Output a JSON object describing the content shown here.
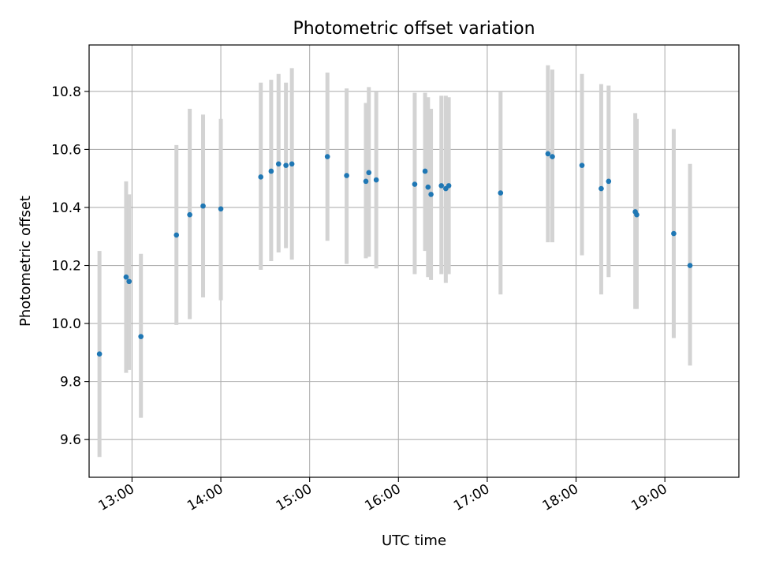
{
  "chart_data": {
    "type": "scatter",
    "title": "Photometric offset variation",
    "xlabel": "UTC time",
    "ylabel": "Photometric offset",
    "grid": true,
    "x_ticks": [
      "13:00",
      "14:00",
      "15:00",
      "16:00",
      "17:00",
      "18:00",
      "19:00"
    ],
    "y_ticks": [
      "9.6",
      "9.8",
      "10.0",
      "10.2",
      "10.4",
      "10.6",
      "10.8"
    ],
    "xlim": [
      "12:31",
      "19:50"
    ],
    "ylim": [
      9.47,
      10.96
    ],
    "point_color": "#1f77b4",
    "errorbar_color": "#d3d3d3",
    "series": [
      {
        "points": [
          {
            "x": "12:38",
            "y": 9.895,
            "low": 9.54,
            "high": 10.25
          },
          {
            "x": "12:56",
            "y": 10.16,
            "low": 9.83,
            "high": 10.49
          },
          {
            "x": "12:58",
            "y": 10.145,
            "low": 9.84,
            "high": 10.445
          },
          {
            "x": "13:06",
            "y": 9.955,
            "low": 9.675,
            "high": 10.24
          },
          {
            "x": "13:30",
            "y": 10.305,
            "low": 9.995,
            "high": 10.615
          },
          {
            "x": "13:39",
            "y": 10.375,
            "low": 10.015,
            "high": 10.74
          },
          {
            "x": "13:48",
            "y": 10.405,
            "low": 10.09,
            "high": 10.72
          },
          {
            "x": "14:00",
            "y": 10.395,
            "low": 10.08,
            "high": 10.705
          },
          {
            "x": "14:27",
            "y": 10.505,
            "low": 10.185,
            "high": 10.83
          },
          {
            "x": "14:34",
            "y": 10.525,
            "low": 10.215,
            "high": 10.84
          },
          {
            "x": "14:39",
            "y": 10.55,
            "low": 10.245,
            "high": 10.86
          },
          {
            "x": "14:44",
            "y": 10.545,
            "low": 10.26,
            "high": 10.83
          },
          {
            "x": "14:48",
            "y": 10.55,
            "low": 10.22,
            "high": 10.88
          },
          {
            "x": "15:12",
            "y": 10.575,
            "low": 10.285,
            "high": 10.865
          },
          {
            "x": "15:25",
            "y": 10.51,
            "low": 10.205,
            "high": 10.81
          },
          {
            "x": "15:38",
            "y": 10.49,
            "low": 10.225,
            "high": 10.76
          },
          {
            "x": "15:40",
            "y": 10.52,
            "low": 10.23,
            "high": 10.815
          },
          {
            "x": "15:45",
            "y": 10.495,
            "low": 10.19,
            "high": 10.8
          },
          {
            "x": "16:11",
            "y": 10.48,
            "low": 10.17,
            "high": 10.795
          },
          {
            "x": "16:18",
            "y": 10.525,
            "low": 10.25,
            "high": 10.795
          },
          {
            "x": "16:20",
            "y": 10.47,
            "low": 10.16,
            "high": 10.78
          },
          {
            "x": "16:22",
            "y": 10.445,
            "low": 10.15,
            "high": 10.74
          },
          {
            "x": "16:29",
            "y": 10.475,
            "low": 10.17,
            "high": 10.785
          },
          {
            "x": "16:32",
            "y": 10.465,
            "low": 10.14,
            "high": 10.785
          },
          {
            "x": "16:34",
            "y": 10.475,
            "low": 10.17,
            "high": 10.78
          },
          {
            "x": "17:09",
            "y": 10.45,
            "low": 10.1,
            "high": 10.8
          },
          {
            "x": "17:41",
            "y": 10.585,
            "low": 10.28,
            "high": 10.89
          },
          {
            "x": "17:44",
            "y": 10.575,
            "low": 10.28,
            "high": 10.875
          },
          {
            "x": "18:04",
            "y": 10.545,
            "low": 10.235,
            "high": 10.86
          },
          {
            "x": "18:17",
            "y": 10.465,
            "low": 10.1,
            "high": 10.825
          },
          {
            "x": "18:22",
            "y": 10.49,
            "low": 10.16,
            "high": 10.82
          },
          {
            "x": "18:40",
            "y": 10.385,
            "low": 10.05,
            "high": 10.725
          },
          {
            "x": "18:41",
            "y": 10.375,
            "low": 10.05,
            "high": 10.705
          },
          {
            "x": "19:06",
            "y": 10.31,
            "low": 9.95,
            "high": 10.67
          },
          {
            "x": "19:17",
            "y": 10.2,
            "low": 9.855,
            "high": 10.55
          }
        ]
      }
    ]
  }
}
